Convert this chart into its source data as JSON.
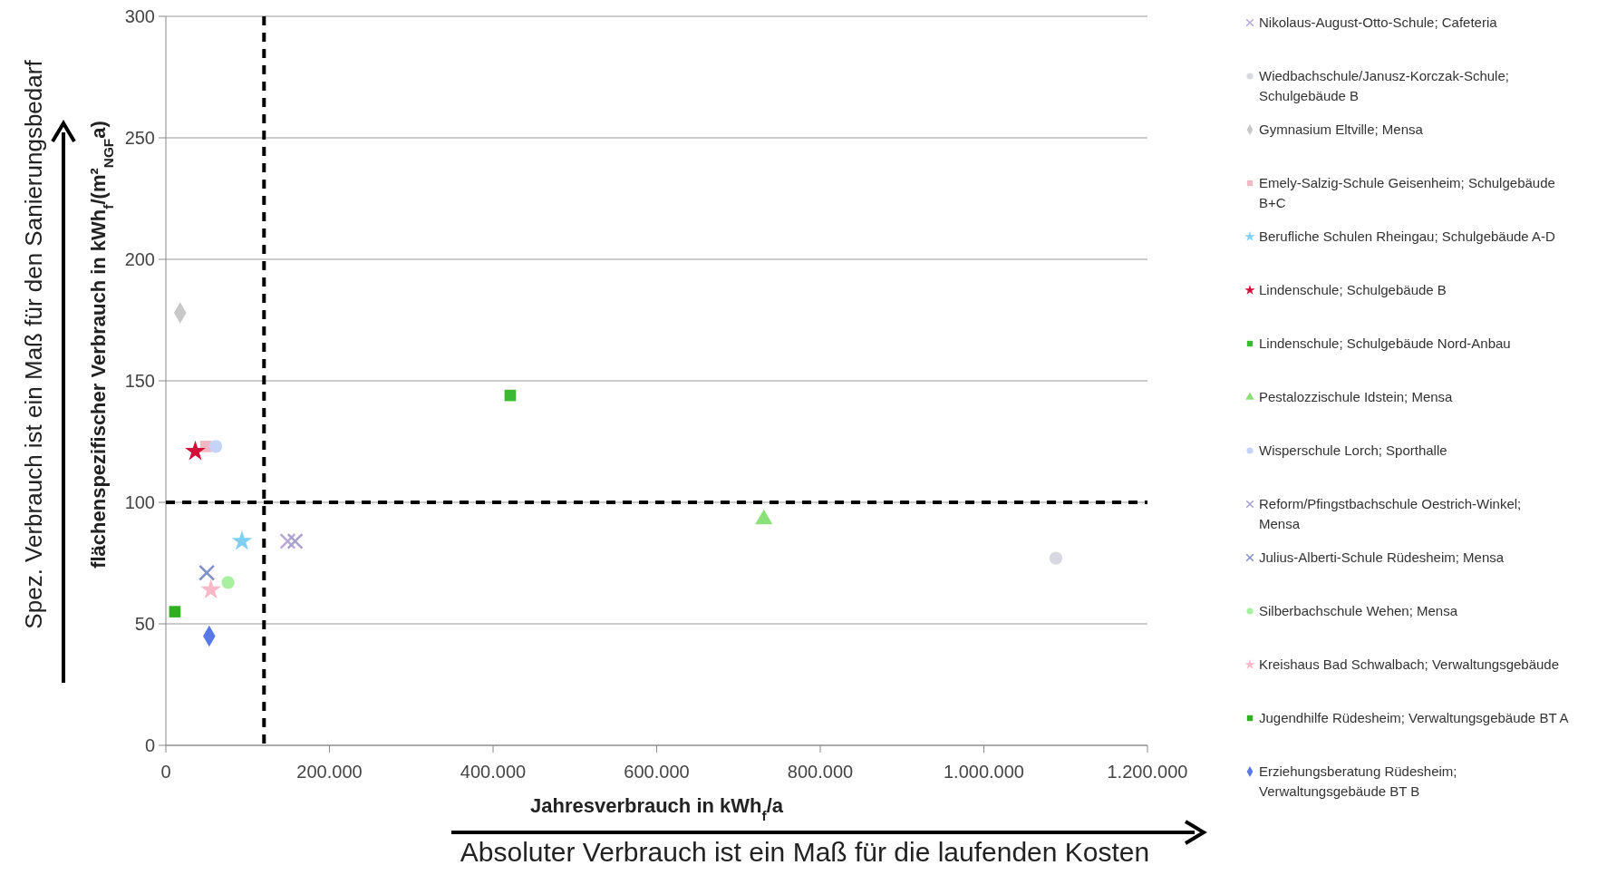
{
  "chart_data": {
    "type": "scatter",
    "xlabel": "Jahresverbrauch in kWh$_{f}$/a",
    "ylabel": "flächenspezifischer Verbrauch in kWh$_{f}$/(m²$_{NGF}$a)",
    "annotations": [
      "Spez. Verbrauch ist ein Maß für den Sanierungsbedarf",
      "Absoluter Verbrauch ist ein Maß für die laufenden Kosten"
    ],
    "xlim": [
      0,
      1200000
    ],
    "ylim": [
      0,
      300
    ],
    "xticks": [
      0,
      {
        "value": 200000,
        "label": "200.000"
      },
      {
        "value": 400000,
        "label": "400.000"
      },
      {
        "value": 600000,
        "label": "600.000"
      },
      {
        "value": 800000,
        "label": "800.000"
      },
      {
        "value": 1000000,
        "label": "1.000.000"
      },
      {
        "value": 1200000,
        "label": "1.200.000"
      }
    ],
    "yticks": [
      0,
      50,
      100,
      150,
      200,
      250,
      300
    ],
    "grid": "y",
    "legend": "right",
    "ref_lines": [
      {
        "axis": "x",
        "value": 120000,
        "color": "#000000",
        "line_style": "dashed"
      },
      {
        "axis": "y",
        "value": 100,
        "color": "#000000",
        "line_style": "dashed"
      }
    ],
    "series": [
      {
        "name": "Nikolaus-August-Otto-Schule; Cafeteria",
        "color": "#b9a8d8",
        "marker": "cross",
        "x": [
          149000
        ],
        "values": [
          84
        ]
      },
      {
        "name": "Wiedbachschule/Janusz-Korczak-Schule; Schulgebäude B",
        "color": "#d8d8e0",
        "marker": "circle",
        "x": [
          1088000
        ],
        "values": [
          77
        ]
      },
      {
        "name": "Gymnasium Eltville; Mensa",
        "color": "#c8c8c8",
        "marker": "diamond",
        "x": [
          17500
        ],
        "values": [
          178
        ]
      },
      {
        "name": "Emely-Salzig-Schule Geisenheim; Schulgebäude B+C",
        "color": "#f4b8c4",
        "marker": "square",
        "x": [
          49000
        ],
        "values": [
          123
        ]
      },
      {
        "name": "Berufliche Schulen Rheingau; Schulgebäude A-D",
        "color": "#7fd0f0",
        "marker": "star",
        "x": [
          93000
        ],
        "values": [
          84
        ]
      },
      {
        "name": "Lindenschule; Schulgebäude B",
        "color": "#d0103a",
        "marker": "star",
        "x": [
          36000
        ],
        "values": [
          121
        ]
      },
      {
        "name": "Lindenschule; Schulgebäude Nord-Anbau",
        "color": "#3cb832",
        "marker": "square",
        "x": [
          421000
        ],
        "values": [
          144
        ]
      },
      {
        "name": "Pestalozzischule Idstein; Mensa",
        "color": "#8ce07a",
        "marker": "triangle",
        "x": [
          731000
        ],
        "values": [
          93
        ]
      },
      {
        "name": "Wisperschule Lorch; Sporthalle",
        "color": "#c4d4f8",
        "marker": "circle",
        "x": [
          61000
        ],
        "values": [
          123
        ]
      },
      {
        "name": "Reform/Pfingstbachschule Oestrich-Winkel; Mensa",
        "color": "#a8a0d0",
        "marker": "cross",
        "x": [
          158000
        ],
        "values": [
          84
        ]
      },
      {
        "name": "Julius-Alberti-Schule Rüdesheim; Mensa",
        "color": "#8090c8",
        "marker": "cross",
        "x": [
          50000
        ],
        "values": [
          71
        ]
      },
      {
        "name": "Silberbachschule Wehen; Mensa",
        "color": "#a8f0a0",
        "marker": "circle",
        "x": [
          76000
        ],
        "values": [
          67
        ]
      },
      {
        "name": "Kreishaus Bad Schwalbach; Verwaltungsgebäude",
        "color": "#f8b8c8",
        "marker": "star",
        "x": [
          55000
        ],
        "values": [
          64
        ]
      },
      {
        "name": "Jugendhilfe Rüdesheim; Verwaltungsgebäude BT A",
        "color": "#30b020",
        "marker": "square",
        "x": [
          11000
        ],
        "values": [
          55
        ]
      },
      {
        "name": "Erziehungsberatung Rüdesheim; Verwaltungsgebäude BT B",
        "color": "#5878e8",
        "marker": "diamond",
        "x": [
          53000
        ],
        "values": [
          45
        ]
      }
    ]
  }
}
